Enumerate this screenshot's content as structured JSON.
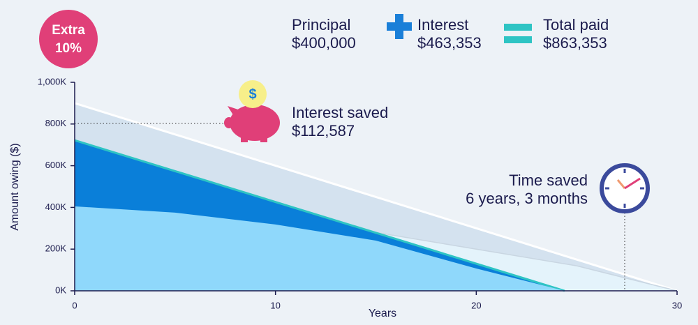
{
  "chart_data": {
    "type": "area",
    "badge": [
      "Extra",
      "10%"
    ],
    "summary": [
      {
        "label": "Principal",
        "value": "$400,000"
      },
      {
        "label": "Interest",
        "value": "$463,353"
      },
      {
        "label": "Total paid",
        "value": "$863,353"
      }
    ],
    "annotations": [
      {
        "label": "Interest saved",
        "value": "$112,587"
      },
      {
        "label": "Time saved",
        "value": "6 years, 3 months"
      }
    ],
    "xlabel": "Years",
    "ylabel": "Amount owing ($)",
    "xlim": [
      0,
      30
    ],
    "xticks": [
      0,
      10,
      20,
      30
    ],
    "ylim": [
      0,
      1000000
    ],
    "yticks": [
      {
        "value": 0,
        "label": "0K"
      },
      {
        "value": 200000,
        "label": "200K"
      },
      {
        "value": 400000,
        "label": "400K"
      },
      {
        "value": 600000,
        "label": "600K"
      },
      {
        "value": 800000,
        "label": "800K"
      },
      {
        "value": 1000000,
        "label": "1,000K"
      }
    ],
    "series": [
      {
        "color": "#d4e2ef",
        "line": "#ffffff",
        "x": [
          0,
          30
        ],
        "values": [
          900000,
          0
        ]
      },
      {
        "color": "#e4f3fb",
        "line": "#c9d6e2",
        "x": [
          0,
          5,
          10,
          15,
          20,
          25,
          30
        ],
        "values": [
          400000,
          370000,
          330000,
          280000,
          200000,
          120000,
          0
        ]
      },
      {
        "color": "#0a7fd9",
        "line": "#2ec4c4",
        "x": [
          0,
          24.4
        ],
        "values": [
          722000,
          0
        ]
      },
      {
        "color": "#8fd8fb",
        "line": "none",
        "x": [
          0,
          5,
          10,
          15,
          20,
          24.4
        ],
        "values": [
          405000,
          375000,
          318000,
          241000,
          107000,
          0
        ]
      }
    ]
  }
}
